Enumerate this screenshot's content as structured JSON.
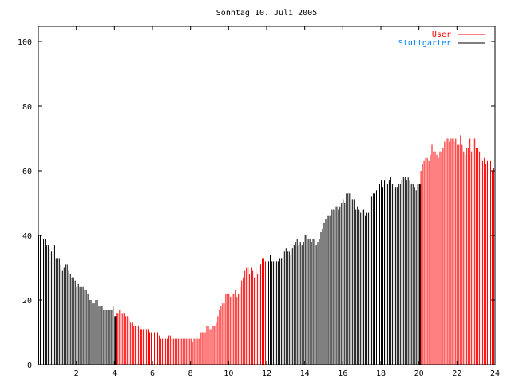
{
  "chart_data": {
    "type": "bar",
    "title": "Sonntag 10. Juli 2005",
    "xlabel": "",
    "ylabel": "",
    "xlim": [
      0,
      24
    ],
    "ylim": [
      0,
      105
    ],
    "x_step_hours": 0.08333,
    "xticks": [
      "2",
      "4",
      "6",
      "8",
      "10",
      "12",
      "14",
      "16",
      "18",
      "20",
      "22",
      "24"
    ],
    "yticks": [
      "0",
      "20",
      "40",
      "60",
      "80",
      "100"
    ],
    "legend": {
      "placement": "top-right",
      "entries": [
        {
          "label": "User",
          "color": "#ff0000"
        },
        {
          "label": "Stuttgarter",
          "color": "#000000",
          "label_color": "#0080ff"
        }
      ]
    },
    "user_ranges_hours": [
      [
        4,
        12
      ],
      [
        20,
        24
      ]
    ],
    "values": [
      40,
      40,
      40,
      39,
      39,
      37,
      37,
      36,
      35,
      35,
      37,
      33,
      33,
      33,
      31,
      29,
      30,
      31,
      31,
      29,
      28,
      27,
      27,
      26,
      24,
      25,
      24,
      24,
      24,
      23,
      23,
      22,
      20,
      20,
      19,
      19,
      20,
      20,
      18,
      18,
      18,
      17,
      17,
      17,
      17,
      17,
      17,
      18,
      15,
      16,
      16,
      17,
      16,
      16,
      16,
      15,
      15,
      14,
      13,
      13,
      12,
      12,
      12,
      12,
      11,
      11,
      11,
      11,
      11,
      11,
      10,
      10,
      10,
      10,
      10,
      10,
      9,
      8,
      8,
      8,
      8,
      8,
      9,
      9,
      8,
      8,
      8,
      8,
      8,
      8,
      8,
      8,
      8,
      8,
      8,
      8,
      8,
      7,
      8,
      8,
      8,
      8,
      10,
      10,
      10,
      10,
      12,
      12,
      11,
      11,
      12,
      12,
      13,
      15,
      17,
      18,
      19,
      19,
      22,
      22,
      22,
      21,
      22,
      22,
      23,
      21,
      22,
      24,
      26,
      27,
      29,
      30,
      30,
      28,
      30,
      29,
      27,
      30,
      28,
      31,
      31,
      33,
      33,
      32,
      32,
      32,
      34,
      32,
      32,
      32,
      32,
      32,
      33,
      33,
      33,
      35,
      36,
      35,
      35,
      34,
      36,
      37,
      38,
      39,
      37,
      38,
      37,
      38,
      40,
      40,
      39,
      39,
      38,
      39,
      39,
      37,
      38,
      39,
      41,
      42,
      44,
      45,
      46,
      46,
      46,
      48,
      48,
      49,
      49,
      48,
      49,
      50,
      51,
      50,
      53,
      53,
      53,
      51,
      51,
      51,
      48,
      49,
      48,
      47,
      48,
      48,
      46,
      47,
      47,
      52,
      52,
      53,
      53,
      54,
      55,
      56,
      57,
      55,
      57,
      58,
      56,
      57,
      58,
      56,
      56,
      55,
      55,
      56,
      56,
      57,
      58,
      58,
      57,
      58,
      57,
      56,
      56,
      55,
      54,
      56,
      56,
      60,
      62,
      63,
      64,
      64,
      63,
      65,
      68,
      66,
      66,
      65,
      64,
      66,
      66,
      67,
      69,
      70,
      70,
      69,
      70,
      70,
      69,
      70,
      68,
      68,
      71,
      68,
      66,
      65,
      67,
      67,
      70,
      66,
      70,
      70,
      67,
      67,
      66,
      64,
      63,
      64,
      62,
      63,
      63,
      63,
      60,
      61
    ]
  }
}
